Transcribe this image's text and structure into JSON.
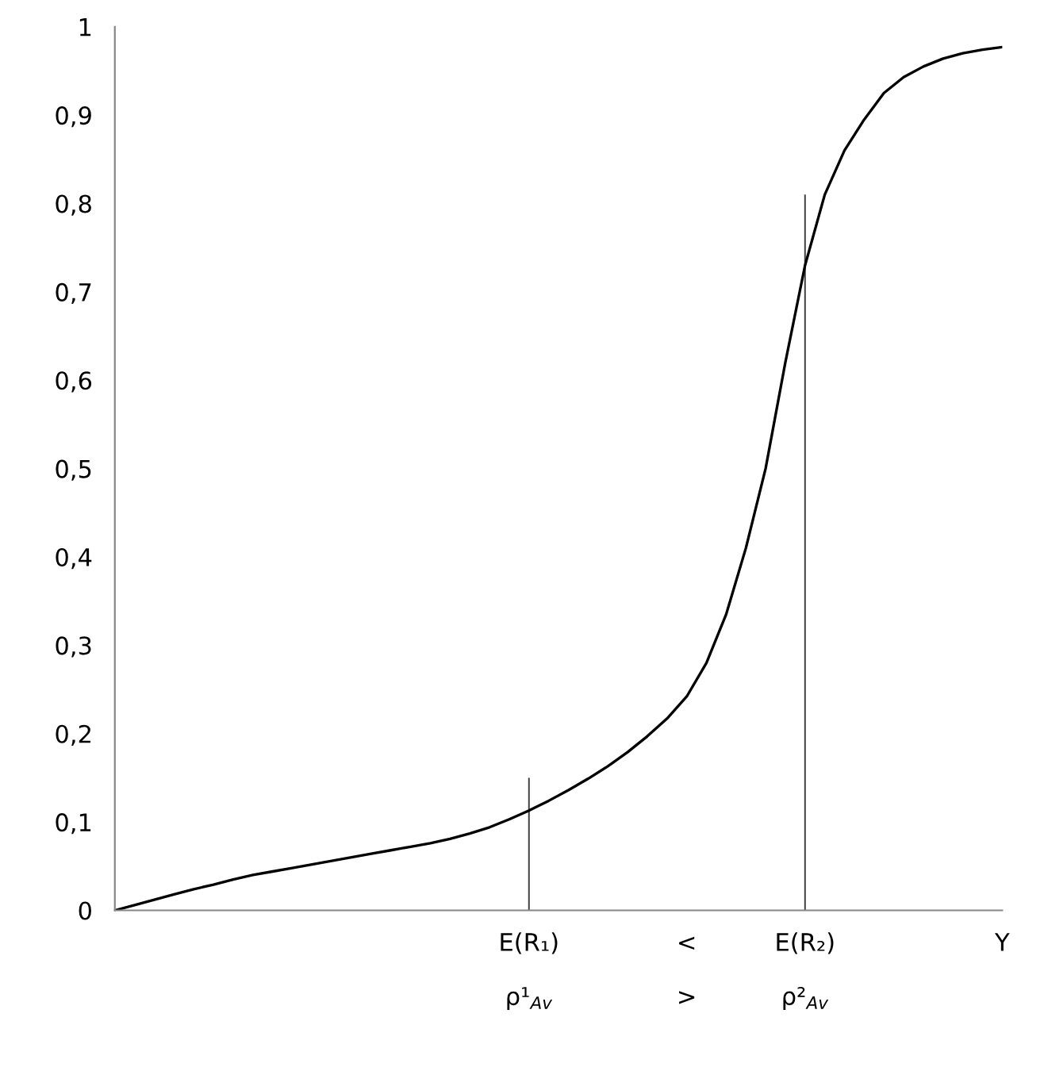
{
  "chart_data": {
    "type": "line",
    "categories": [
      null,
      null,
      null,
      null,
      null,
      null,
      null,
      null,
      null,
      null,
      null,
      null,
      null,
      null,
      null,
      null,
      null,
      null,
      null,
      null,
      null,
      "E(R₁)\n\nρ¹$_{Av}$",
      null,
      null,
      null,
      null,
      null,
      null,
      null,
      "<\n\n>",
      null,
      null,
      null,
      null,
      null,
      "E(R₂)\n\nρ²$_{Av}$",
      null,
      null,
      null,
      null,
      null,
      null,
      null,
      null,
      null,
      "Y"
    ],
    "series": [
      {
        "color": "#000000",
        "values": [
          0,
          0.006,
          0.012,
          0.018,
          0.024,
          0.029,
          0.035,
          0.04,
          0.044,
          0.048,
          0.052,
          0.056,
          0.06,
          0.064,
          0.068,
          0.072,
          0.076,
          0.081,
          0.087,
          0.094,
          0.103,
          0.113,
          0.124,
          0.136,
          0.149,
          0.163,
          0.179,
          0.197,
          0.217,
          0.242,
          0.28,
          0.335,
          0.41,
          0.5,
          0.62,
          0.73,
          0.81,
          0.86,
          0.895,
          0.925,
          0.943,
          0.955,
          0.964,
          0.97,
          0.974,
          0.977
        ]
      },
      {
        "type": "bar",
        "color": "#404040",
        "values": [
          null,
          null,
          null,
          null,
          null,
          null,
          null,
          null,
          null,
          null,
          null,
          null,
          null,
          null,
          null,
          null,
          null,
          null,
          null,
          null,
          null,
          0.15,
          null,
          null,
          null,
          null,
          null,
          null,
          null,
          null,
          null,
          null,
          null,
          null,
          null,
          0.81,
          null,
          null,
          null,
          null,
          null,
          null,
          null,
          null,
          null,
          null
        ]
      }
    ],
    "ylim": [
      0,
      1
    ],
    "yticks": [
      0,
      {
        "value": 0.1,
        "label": "0,1"
      },
      {
        "value": 0.2,
        "label": "0,2"
      },
      {
        "value": 0.3,
        "label": "0,3"
      },
      {
        "value": 0.4,
        "label": "0,4"
      },
      {
        "value": 0.5,
        "label": "0,5"
      },
      {
        "value": 0.6,
        "label": "0,6"
      },
      {
        "value": 0.7,
        "label": "0,7"
      },
      {
        "value": 0.8,
        "label": "0,8"
      },
      {
        "value": 0.9,
        "label": "0,9"
      },
      1
    ],
    "grid": false,
    "legend": false,
    "marker": "none",
    "line_style": "solid"
  }
}
